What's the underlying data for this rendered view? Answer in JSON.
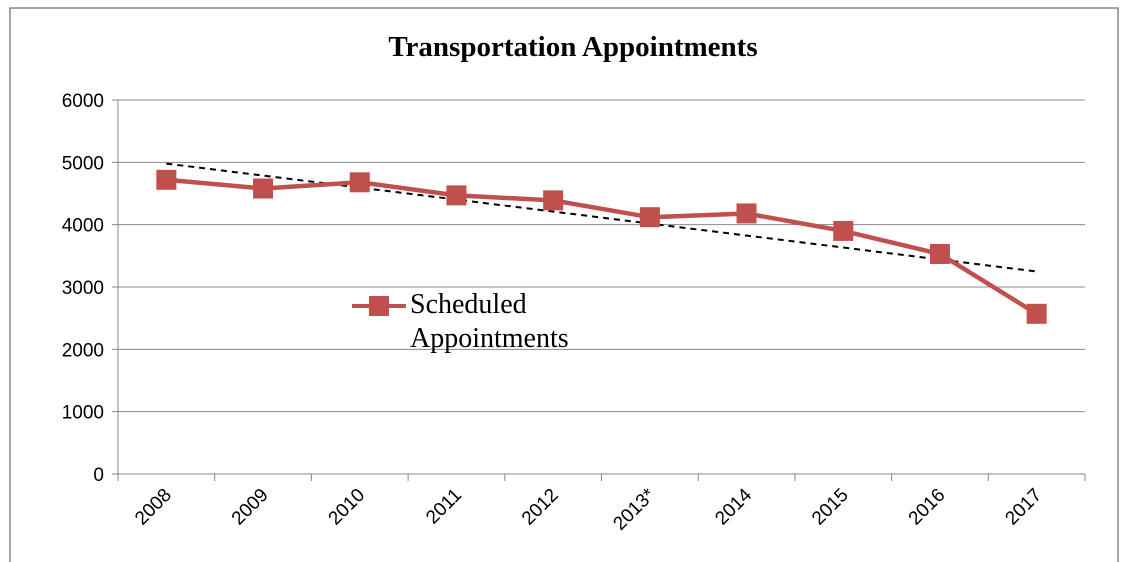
{
  "chart_data": {
    "type": "line",
    "title": "Transportation  Appointments",
    "categories": [
      "2008",
      "2009",
      "2010",
      "2011",
      "2012",
      "2013*",
      "2014",
      "2015",
      "2016",
      "2017"
    ],
    "series": [
      {
        "name": "Scheduled Appointments",
        "color": "#c0504d",
        "values": [
          4720,
          4580,
          4680,
          4470,
          4390,
          4120,
          4180,
          3900,
          3530,
          2570
        ]
      }
    ],
    "ylim": [
      0,
      6000
    ],
    "yticks": [
      0,
      1000,
      2000,
      3000,
      4000,
      5000,
      6000
    ],
    "grid": true,
    "trendline": "linear",
    "legend": "center"
  }
}
